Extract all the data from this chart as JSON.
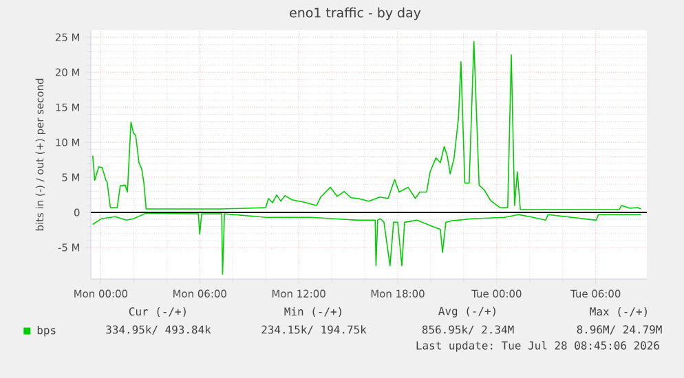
{
  "chart_data": {
    "type": "line",
    "title": "eno1 traffic - by day",
    "ylabel": "bits in (-) / out (+) per second",
    "xlim": [
      "2026-07-26T23:24",
      "2026-07-28T09:06"
    ],
    "ylim": [
      -9.5,
      26
    ],
    "xticks": [
      {
        "value": "2026-07-27T00:00",
        "label": "Mon 00:00"
      },
      {
        "value": "2026-07-27T06:00",
        "label": "Mon 06:00"
      },
      {
        "value": "2026-07-27T12:00",
        "label": "Mon 12:00"
      },
      {
        "value": "2026-07-27T18:00",
        "label": "Mon 18:00"
      },
      {
        "value": "2026-07-28T00:00",
        "label": "Tue 00:00"
      },
      {
        "value": "2026-07-28T06:00",
        "label": "Tue 06:00"
      }
    ],
    "yticks": [
      {
        "value": -5,
        "label": "-5 M"
      },
      0,
      {
        "value": 5,
        "label": "5 M"
      },
      {
        "value": 10,
        "label": "10 M"
      },
      {
        "value": 15,
        "label": "15 M"
      },
      {
        "value": 20,
        "label": "20 M"
      },
      {
        "value": 25,
        "label": "25 M"
      }
    ],
    "grid": true,
    "legend": "bottom left",
    "ref_lines": [
      {
        "axis": "y",
        "value": 0,
        "color": "#000000"
      }
    ],
    "series": [
      {
        "name": "bps",
        "color": "#00cc00",
        "x": [
          "2026-07-26T23:31",
          "2026-07-26T23:38",
          "2026-07-26T23:53",
          "2026-07-27T00:05",
          "2026-07-27T00:19",
          "2026-07-27T00:23",
          "2026-07-27T00:35",
          "2026-07-27T01:00",
          "2026-07-27T01:11",
          "2026-07-27T01:29",
          "2026-07-27T01:37",
          "2026-07-27T01:50",
          "2026-07-27T01:59",
          "2026-07-27T02:07",
          "2026-07-27T02:19",
          "2026-07-27T02:29",
          "2026-07-27T02:37",
          "2026-07-27T02:45",
          "2026-07-27T07:15",
          "2026-07-27T08:55",
          "2026-07-27T10:00",
          "2026-07-27T10:10",
          "2026-07-27T10:25",
          "2026-07-27T10:40",
          "2026-07-27T10:55",
          "2026-07-27T11:10",
          "2026-07-27T11:35",
          "2026-07-27T12:15",
          "2026-07-27T13:05",
          "2026-07-27T13:20",
          "2026-07-27T13:55",
          "2026-07-27T14:20",
          "2026-07-27T14:45",
          "2026-07-27T15:10",
          "2026-07-27T15:35",
          "2026-07-27T16:15",
          "2026-07-27T16:55",
          "2026-07-27T17:25",
          "2026-07-27T17:49",
          "2026-07-27T18:05",
          "2026-07-27T18:38",
          "2026-07-27T19:04",
          "2026-07-27T19:20",
          "2026-07-27T19:45",
          "2026-07-27T19:58",
          "2026-07-27T20:19",
          "2026-07-27T20:35",
          "2026-07-27T20:49",
          "2026-07-27T21:00",
          "2026-07-27T21:11",
          "2026-07-27T21:25",
          "2026-07-27T21:41",
          "2026-07-27T21:50",
          "2026-07-27T22:04",
          "2026-07-27T22:20",
          "2026-07-27T22:37",
          "2026-07-27T22:56",
          "2026-07-27T23:15",
          "2026-07-27T23:38",
          "2026-07-28T00:11",
          "2026-07-28T00:40",
          "2026-07-28T00:53",
          "2026-07-28T01:05",
          "2026-07-28T01:15",
          "2026-07-28T01:26",
          "2026-07-28T07:25",
          "2026-07-28T07:34",
          "2026-07-28T08:05",
          "2026-07-28T08:32",
          "2026-07-28T08:45"
        ],
        "values": [
          8.1,
          4.6,
          6.5,
          6.4,
          4.6,
          4.4,
          0.7,
          0.7,
          3.8,
          3.9,
          2.9,
          12.9,
          11.3,
          11.0,
          7.1,
          6.2,
          4.2,
          0.5,
          0.5,
          0.6,
          0.7,
          2.0,
          1.4,
          2.5,
          1.6,
          2.4,
          1.8,
          1.5,
          1.0,
          2.2,
          3.6,
          2.3,
          3.0,
          2.1,
          2.0,
          1.6,
          2.2,
          2.0,
          4.7,
          2.9,
          3.6,
          2.0,
          2.9,
          2.9,
          5.8,
          7.8,
          7.1,
          9.4,
          8.1,
          5.5,
          7.8,
          13.5,
          21.5,
          4.2,
          4.2,
          24.4,
          3.9,
          3.2,
          1.7,
          0.7,
          0.7,
          22.5,
          1.0,
          5.8,
          0.4,
          0.4,
          1.0,
          0.6,
          0.7,
          0.5
        ]
      },
      {
        "color": "#00cc00",
        "x": [
          "2026-07-26T23:31",
          "2026-07-27T00:02",
          "2026-07-27T00:52",
          "2026-07-27T01:34",
          "2026-07-27T01:59",
          "2026-07-27T02:45",
          "2026-07-27T05:55",
          "2026-07-27T06:00",
          "2026-07-27T06:07",
          "2026-07-27T07:20",
          "2026-07-27T07:23",
          "2026-07-27T07:30",
          "2026-07-27T10:02",
          "2026-07-27T12:45",
          "2026-07-27T15:35",
          "2026-07-27T16:38",
          "2026-07-27T16:41",
          "2026-07-27T16:47",
          "2026-07-27T16:55",
          "2026-07-27T17:00",
          "2026-07-27T17:10",
          "2026-07-27T17:32",
          "2026-07-27T17:45",
          "2026-07-27T18:00",
          "2026-07-27T18:15",
          "2026-07-27T18:25",
          "2026-07-27T19:10",
          "2026-07-27T20:19",
          "2026-07-27T20:35",
          "2026-07-27T20:43",
          "2026-07-27T20:55",
          "2026-07-27T21:15",
          "2026-07-27T22:30",
          "2026-07-28T00:28",
          "2026-07-28T01:19",
          "2026-07-28T02:00",
          "2026-07-28T02:58",
          "2026-07-28T03:07",
          "2026-07-28T06:02",
          "2026-07-28T06:10",
          "2026-07-28T08:45"
        ],
        "values": [
          -1.7,
          -0.9,
          -0.6,
          -1.1,
          -0.9,
          -0.1,
          -0.2,
          -3.1,
          -0.2,
          -0.2,
          -8.8,
          -0.2,
          -0.7,
          -0.7,
          -1.1,
          -1.1,
          -7.6,
          -1.1,
          -0.9,
          -1.0,
          -1.4,
          -7.6,
          -1.4,
          -1.4,
          -7.6,
          -1.4,
          -1.1,
          -2.2,
          -2.4,
          -5.7,
          -1.4,
          -1.2,
          -0.9,
          -0.7,
          -0.3,
          -0.6,
          -1.1,
          -0.3,
          -1.1,
          -0.3,
          -0.3
        ]
      }
    ],
    "annotations": [
      "Cur (-/+)",
      "Min (-/+)",
      "Avg (-/+)",
      "Max (-/+)",
      "334.95k/ 493.84k",
      "234.15k/ 194.75k",
      "856.95k/ 2.34M",
      "8.96M/ 24.79M",
      "Last update: Tue Jul 28 08:45:06 2026"
    ]
  }
}
